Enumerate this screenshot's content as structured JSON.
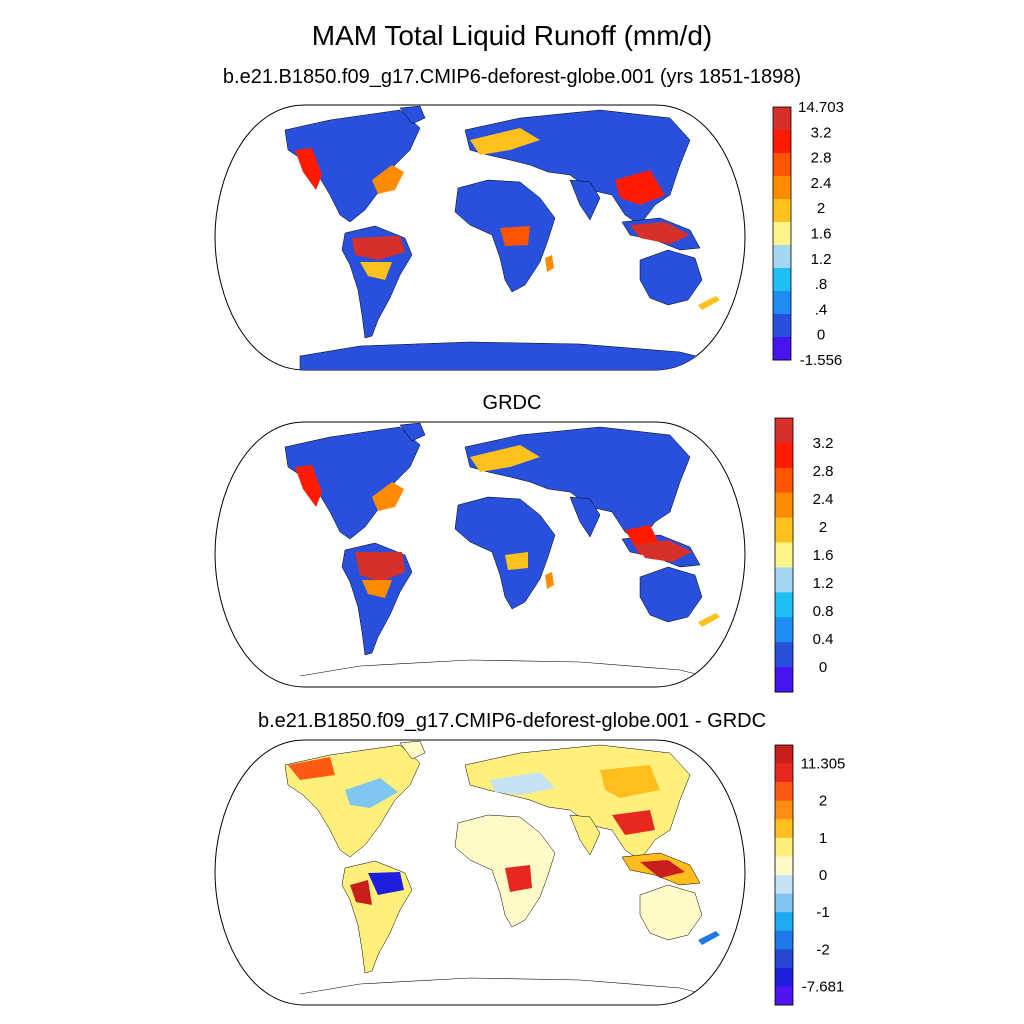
{
  "figure": {
    "title": "MAM Total Liquid Runoff (mm/d)"
  },
  "panels": [
    {
      "id": "model",
      "subtitle": "b.e21.B1850.f09_g17.CMIP6-deforest-globe.001 (yrs 1851-1898)",
      "colorbar": {
        "labels": [
          "14.703",
          "3.2",
          "2.8",
          "2.4",
          "2",
          "1.6",
          "1.2",
          ".8",
          ".4",
          "0",
          "-1.556"
        ],
        "colors": [
          "#d7302b",
          "#ff1a00",
          "#ff5400",
          "#ff8c00",
          "#ffc21c",
          "#fff58c",
          "#a6d7f2",
          "#1ec0f5",
          "#1e8cf0",
          "#2850dc",
          "#4614f0"
        ]
      }
    },
    {
      "id": "obs",
      "subtitle": "GRDC",
      "colorbar": {
        "labels": [
          "3.2",
          "2.8",
          "2.4",
          "2",
          "1.6",
          "1.2",
          "0.8",
          "0.4",
          "0"
        ],
        "colors": [
          "#d7302b",
          "#ff1a00",
          "#ff5400",
          "#ff8c00",
          "#ffc21c",
          "#fff58c",
          "#a6d7f2",
          "#1ec0f5",
          "#1e8cf0",
          "#2850dc",
          "#4614f0"
        ]
      }
    },
    {
      "id": "diff",
      "subtitle": "b.e21.B1850.f09_g17.CMIP6-deforest-globe.001 - GRDC",
      "colorbar": {
        "labels": [
          "11.305",
          "2",
          "1",
          "0",
          "-1",
          "-2",
          "-7.681"
        ],
        "colors": [
          "#c81e1e",
          "#e6281e",
          "#ff5a14",
          "#ff8c14",
          "#ffbe1e",
          "#fff07d",
          "#fffac8",
          "#c6e2f5",
          "#7fc6f0",
          "#1eaaf0",
          "#1e78e6",
          "#2846d2",
          "#1e1edc",
          "#5014f0"
        ]
      }
    }
  ]
}
